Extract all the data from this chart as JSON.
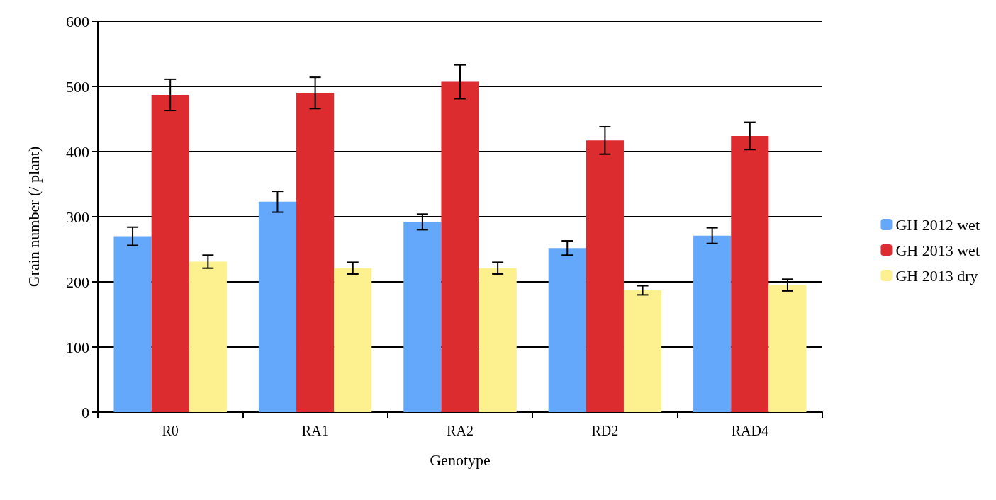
{
  "chart_data": {
    "type": "bar",
    "xlabel": "Genotype",
    "ylabel": "Grain number (/ plant)",
    "categories": [
      "R0",
      "RA1",
      "RA2",
      "RD2",
      "RAD4"
    ],
    "series": [
      {
        "name": "GH 2012 wet",
        "color": "#64a8fc",
        "values": [
          270,
          323,
          292,
          252,
          271
        ],
        "errors": [
          14,
          16,
          12,
          11,
          12
        ]
      },
      {
        "name": "GH 2013 wet",
        "color": "#dd2c30",
        "values": [
          487,
          490,
          507,
          417,
          424
        ],
        "errors": [
          24,
          24,
          26,
          21,
          21
        ]
      },
      {
        "name": "GH 2013 dry",
        "color": "#fdf18f",
        "values": [
          231,
          221,
          221,
          187,
          195
        ],
        "errors": [
          10,
          9,
          9,
          7,
          9
        ]
      }
    ],
    "ylim": [
      0,
      600
    ],
    "yticks": [
      0,
      100,
      200,
      300,
      400,
      500,
      600
    ],
    "grid": "y",
    "legend": "right"
  }
}
